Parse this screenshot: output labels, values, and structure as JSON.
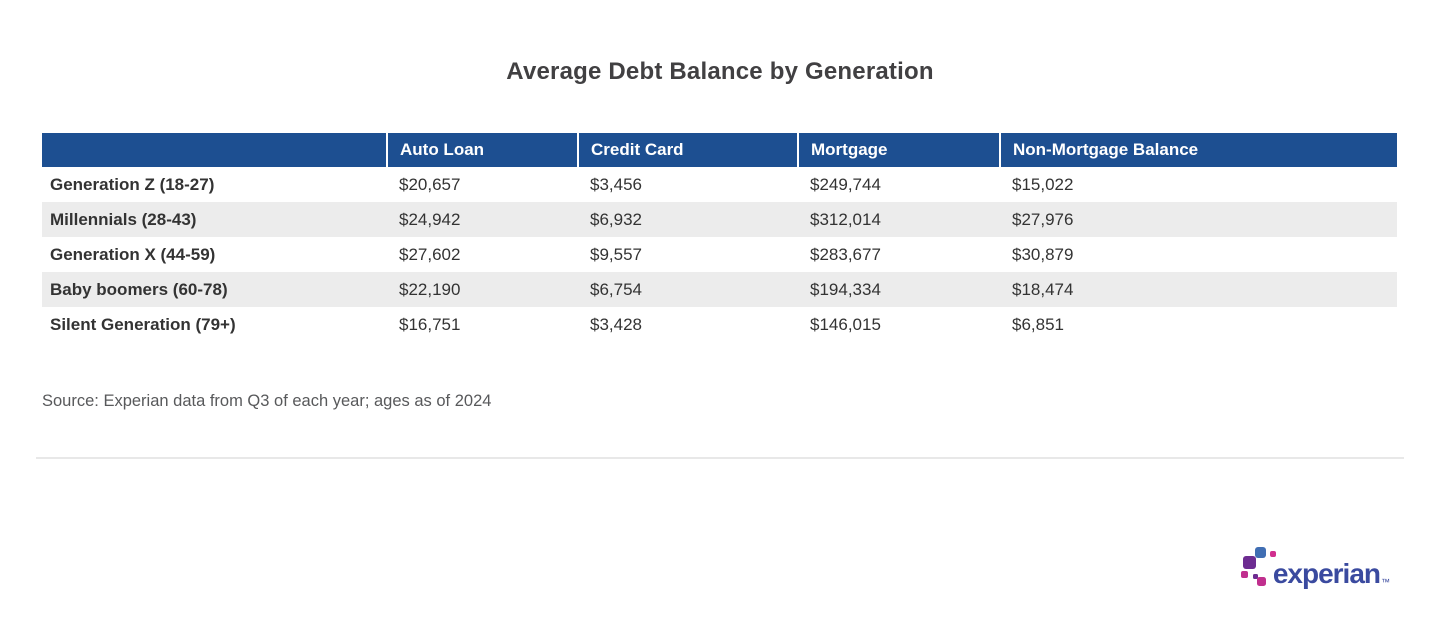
{
  "page": {
    "title": "Average Debt Balance by Generation",
    "source_note": "Source: Experian data from Q3 of each year; ages as of 2024"
  },
  "table": {
    "header_labels": [
      "",
      "Auto Loan",
      "Credit Card",
      "Mortgage",
      "Non-Mortgage Balance"
    ],
    "rows": [
      {
        "label": "Generation Z (18-27)",
        "values": [
          "$20,657",
          "$3,456",
          "$249,744",
          "$15,022"
        ]
      },
      {
        "label": "Millennials (28-43)",
        "values": [
          "$24,942",
          "$6,932",
          "$312,014",
          "$27,976"
        ]
      },
      {
        "label": "Generation X (44-59)",
        "values": [
          "$27,602",
          "$9,557",
          "$283,677",
          "$30,879"
        ]
      },
      {
        "label": "Baby boomers (60-78)",
        "values": [
          "$22,190",
          "$6,754",
          "$194,334",
          "$18,474"
        ]
      },
      {
        "label": "Silent Generation (79+)",
        "values": [
          "$16,751",
          "$3,428",
          "$146,015",
          "$6,851"
        ]
      }
    ]
  },
  "chart_data": {
    "type": "table",
    "title": "Average Debt Balance by Generation",
    "columns": [
      "Auto Loan",
      "Credit Card",
      "Mortgage",
      "Non-Mortgage Balance"
    ],
    "row_labels": [
      "Generation Z (18-27)",
      "Millennials (28-43)",
      "Generation X (44-59)",
      "Baby boomers (60-78)",
      "Silent Generation (79+)"
    ],
    "values": [
      [
        20657,
        3456,
        249744,
        15022
      ],
      [
        24942,
        6932,
        312014,
        27976
      ],
      [
        27602,
        9557,
        283677,
        30879
      ],
      [
        22190,
        6754,
        194334,
        18474
      ],
      [
        16751,
        3428,
        146015,
        6851
      ]
    ],
    "units": "USD",
    "source": "Source: Experian data from Q3 of each year; ages as of 2024"
  },
  "logo": {
    "brand": "experian",
    "trademark": "™"
  },
  "colors": {
    "header_bg": "#1d4f91",
    "row_alt_bg": "#ececec",
    "title_color": "#414042",
    "logo_text": "#3a4a9f",
    "logo_light_blue": "#406EB3",
    "logo_purple": "#6d2c91",
    "logo_magenta": "#c02f8e",
    "logo_pink": "#d12e8e"
  }
}
